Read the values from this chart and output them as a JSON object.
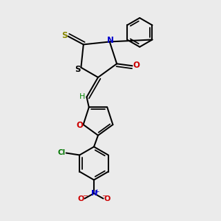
{
  "background_color": "#ebebeb",
  "black": "#000000",
  "blue": "#0000cc",
  "red": "#cc0000",
  "green": "#007700",
  "yellow_s": "#888800",
  "cyan_h": "#008800",
  "lw": 1.5,
  "lw_dbl": 1.3
}
